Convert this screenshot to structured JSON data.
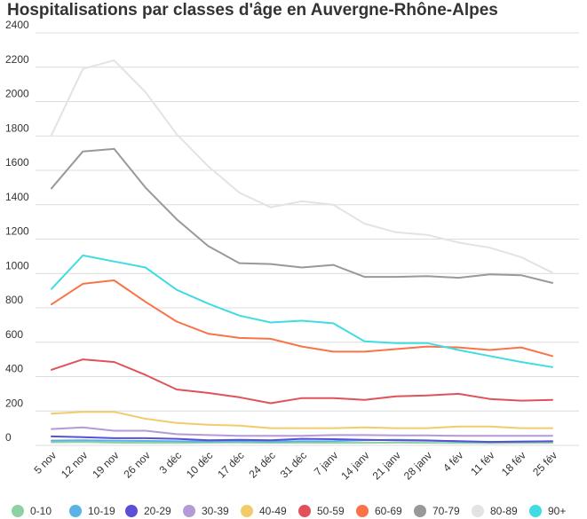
{
  "chart_data": {
    "type": "line",
    "title": "Hospitalisations par classes d'âge en Auvergne-Rhône-Alpes",
    "xlabel": "",
    "ylabel": "",
    "ylim": [
      0,
      2400
    ],
    "yticks": [
      0,
      200,
      400,
      600,
      800,
      1000,
      1200,
      1400,
      1600,
      1800,
      2000,
      2200,
      2400
    ],
    "grid": true,
    "legend_position": "bottom",
    "x": [
      "5 nov",
      "12 nov",
      "19 nov",
      "26 nov",
      "3 déc",
      "10 déc",
      "17 déc",
      "24 déc",
      "31 déc",
      "7 janv",
      "14 janv",
      "21 janv",
      "28 janv",
      "4 fév",
      "11 fév",
      "18 fév",
      "25 fév"
    ],
    "series": [
      {
        "name": "0-10",
        "color": "#8fd1a5",
        "values": [
          18,
          20,
          16,
          15,
          15,
          16,
          17,
          15,
          16,
          15,
          15,
          16,
          15,
          14,
          13,
          14,
          15
        ]
      },
      {
        "name": "10-19",
        "color": "#5ab3e6",
        "values": [
          28,
          30,
          27,
          26,
          24,
          22,
          23,
          22,
          24,
          25,
          30,
          32,
          30,
          22,
          20,
          22,
          24
        ]
      },
      {
        "name": "20-29",
        "color": "#5a4fd6",
        "values": [
          52,
          48,
          42,
          42,
          38,
          30,
          32,
          30,
          38,
          36,
          32,
          30,
          28,
          25,
          20,
          22,
          24
        ]
      },
      {
        "name": "30-39",
        "color": "#b49ad6",
        "values": [
          95,
          105,
          85,
          85,
          65,
          60,
          55,
          55,
          55,
          60,
          60,
          58,
          58,
          55,
          55,
          55,
          55
        ]
      },
      {
        "name": "40-49",
        "color": "#f2cb6a",
        "values": [
          185,
          195,
          195,
          155,
          130,
          120,
          115,
          100,
          100,
          100,
          105,
          100,
          100,
          110,
          110,
          100,
          100
        ]
      },
      {
        "name": "50-59",
        "color": "#e0525a",
        "values": [
          440,
          500,
          485,
          410,
          325,
          305,
          280,
          245,
          275,
          275,
          265,
          285,
          290,
          300,
          270,
          260,
          265
        ]
      },
      {
        "name": "60-69",
        "color": "#fa7348",
        "values": [
          820,
          940,
          960,
          835,
          720,
          650,
          625,
          620,
          575,
          545,
          545,
          560,
          575,
          570,
          555,
          570,
          520
        ]
      },
      {
        "name": "70-79",
        "color": "#999999",
        "values": [
          1495,
          1710,
          1725,
          1500,
          1315,
          1160,
          1060,
          1055,
          1035,
          1050,
          980,
          980,
          985,
          975,
          995,
          990,
          945
        ]
      },
      {
        "name": "80-89",
        "color": "#e3e3e3",
        "values": [
          1805,
          2190,
          2240,
          2055,
          1810,
          1625,
          1470,
          1385,
          1420,
          1400,
          1290,
          1240,
          1225,
          1180,
          1150,
          1095,
          1005
        ]
      },
      {
        "name": "90+",
        "color": "#3fdde3",
        "values": [
          910,
          1105,
          1070,
          1035,
          905,
          825,
          755,
          715,
          725,
          710,
          605,
          595,
          595,
          555,
          520,
          485,
          455
        ]
      }
    ]
  }
}
